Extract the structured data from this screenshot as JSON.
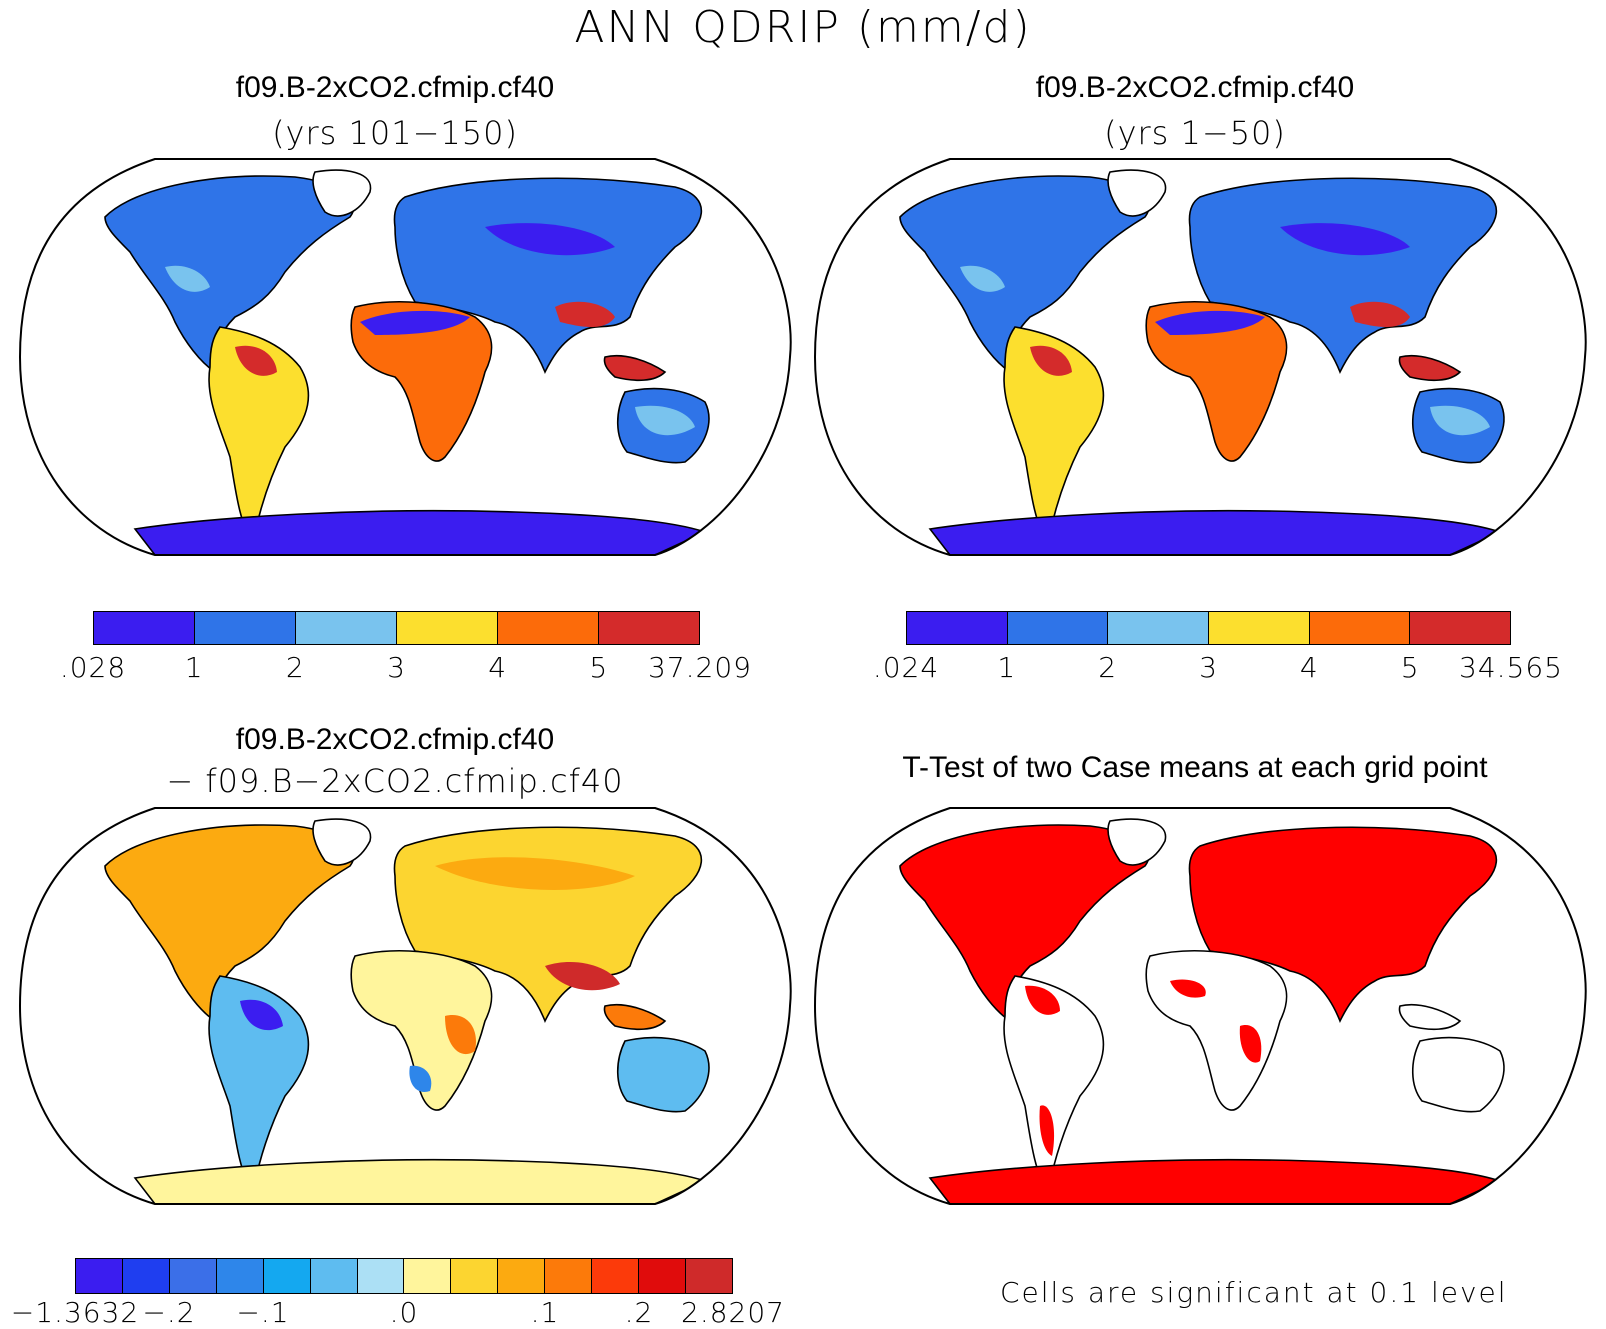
{
  "title": "ANN QDRIP (mm/d)",
  "panels": [
    {
      "title": "f09.B-2xCO2.cfmip.cf40",
      "subtitle": "(yrs 101−150)"
    },
    {
      "title": "f09.B-2xCO2.cfmip.cf40",
      "subtitle": "(yrs 1−50)"
    },
    {
      "title": "f09.B-2xCO2.cfmip.cf40",
      "subtitle": "− f09.B−2xCO2.cfmip.cf40"
    },
    {
      "title": "T-Test of two Case means at each grid point",
      "subtitle": ""
    }
  ],
  "colorbars": [
    {
      "labels": [
        ".028",
        "1",
        "2",
        "3",
        "4",
        "5",
        "37.209"
      ],
      "colors": [
        "#3b1df0",
        "#2f74e8",
        "#79c3ee",
        "#fcdf2e",
        "#fc6b0a",
        "#d42b2b"
      ]
    },
    {
      "labels": [
        ".024",
        "1",
        "2",
        "3",
        "4",
        "5",
        "34.565"
      ],
      "colors": [
        "#3b1df0",
        "#2f74e8",
        "#79c3ee",
        "#fcdf2e",
        "#fc6b0a",
        "#d42b2b"
      ]
    },
    {
      "labels": [
        "−1.3632",
        "−.2",
        "−.1",
        ".0",
        ".1",
        ".2",
        "2.8207"
      ],
      "colors": [
        "#3b1df0",
        "#1f3ef0",
        "#3b6fe8",
        "#2e86ea",
        "#14a8f0",
        "#5ebcf0",
        "#ace0f5",
        "#fff59c",
        "#fcd530",
        "#fcaa10",
        "#fc7a0a",
        "#fc3a0a",
        "#e00c0c",
        "#cf2a2a"
      ]
    }
  ],
  "significance_note": "Cells are significant at 0.1 level"
}
